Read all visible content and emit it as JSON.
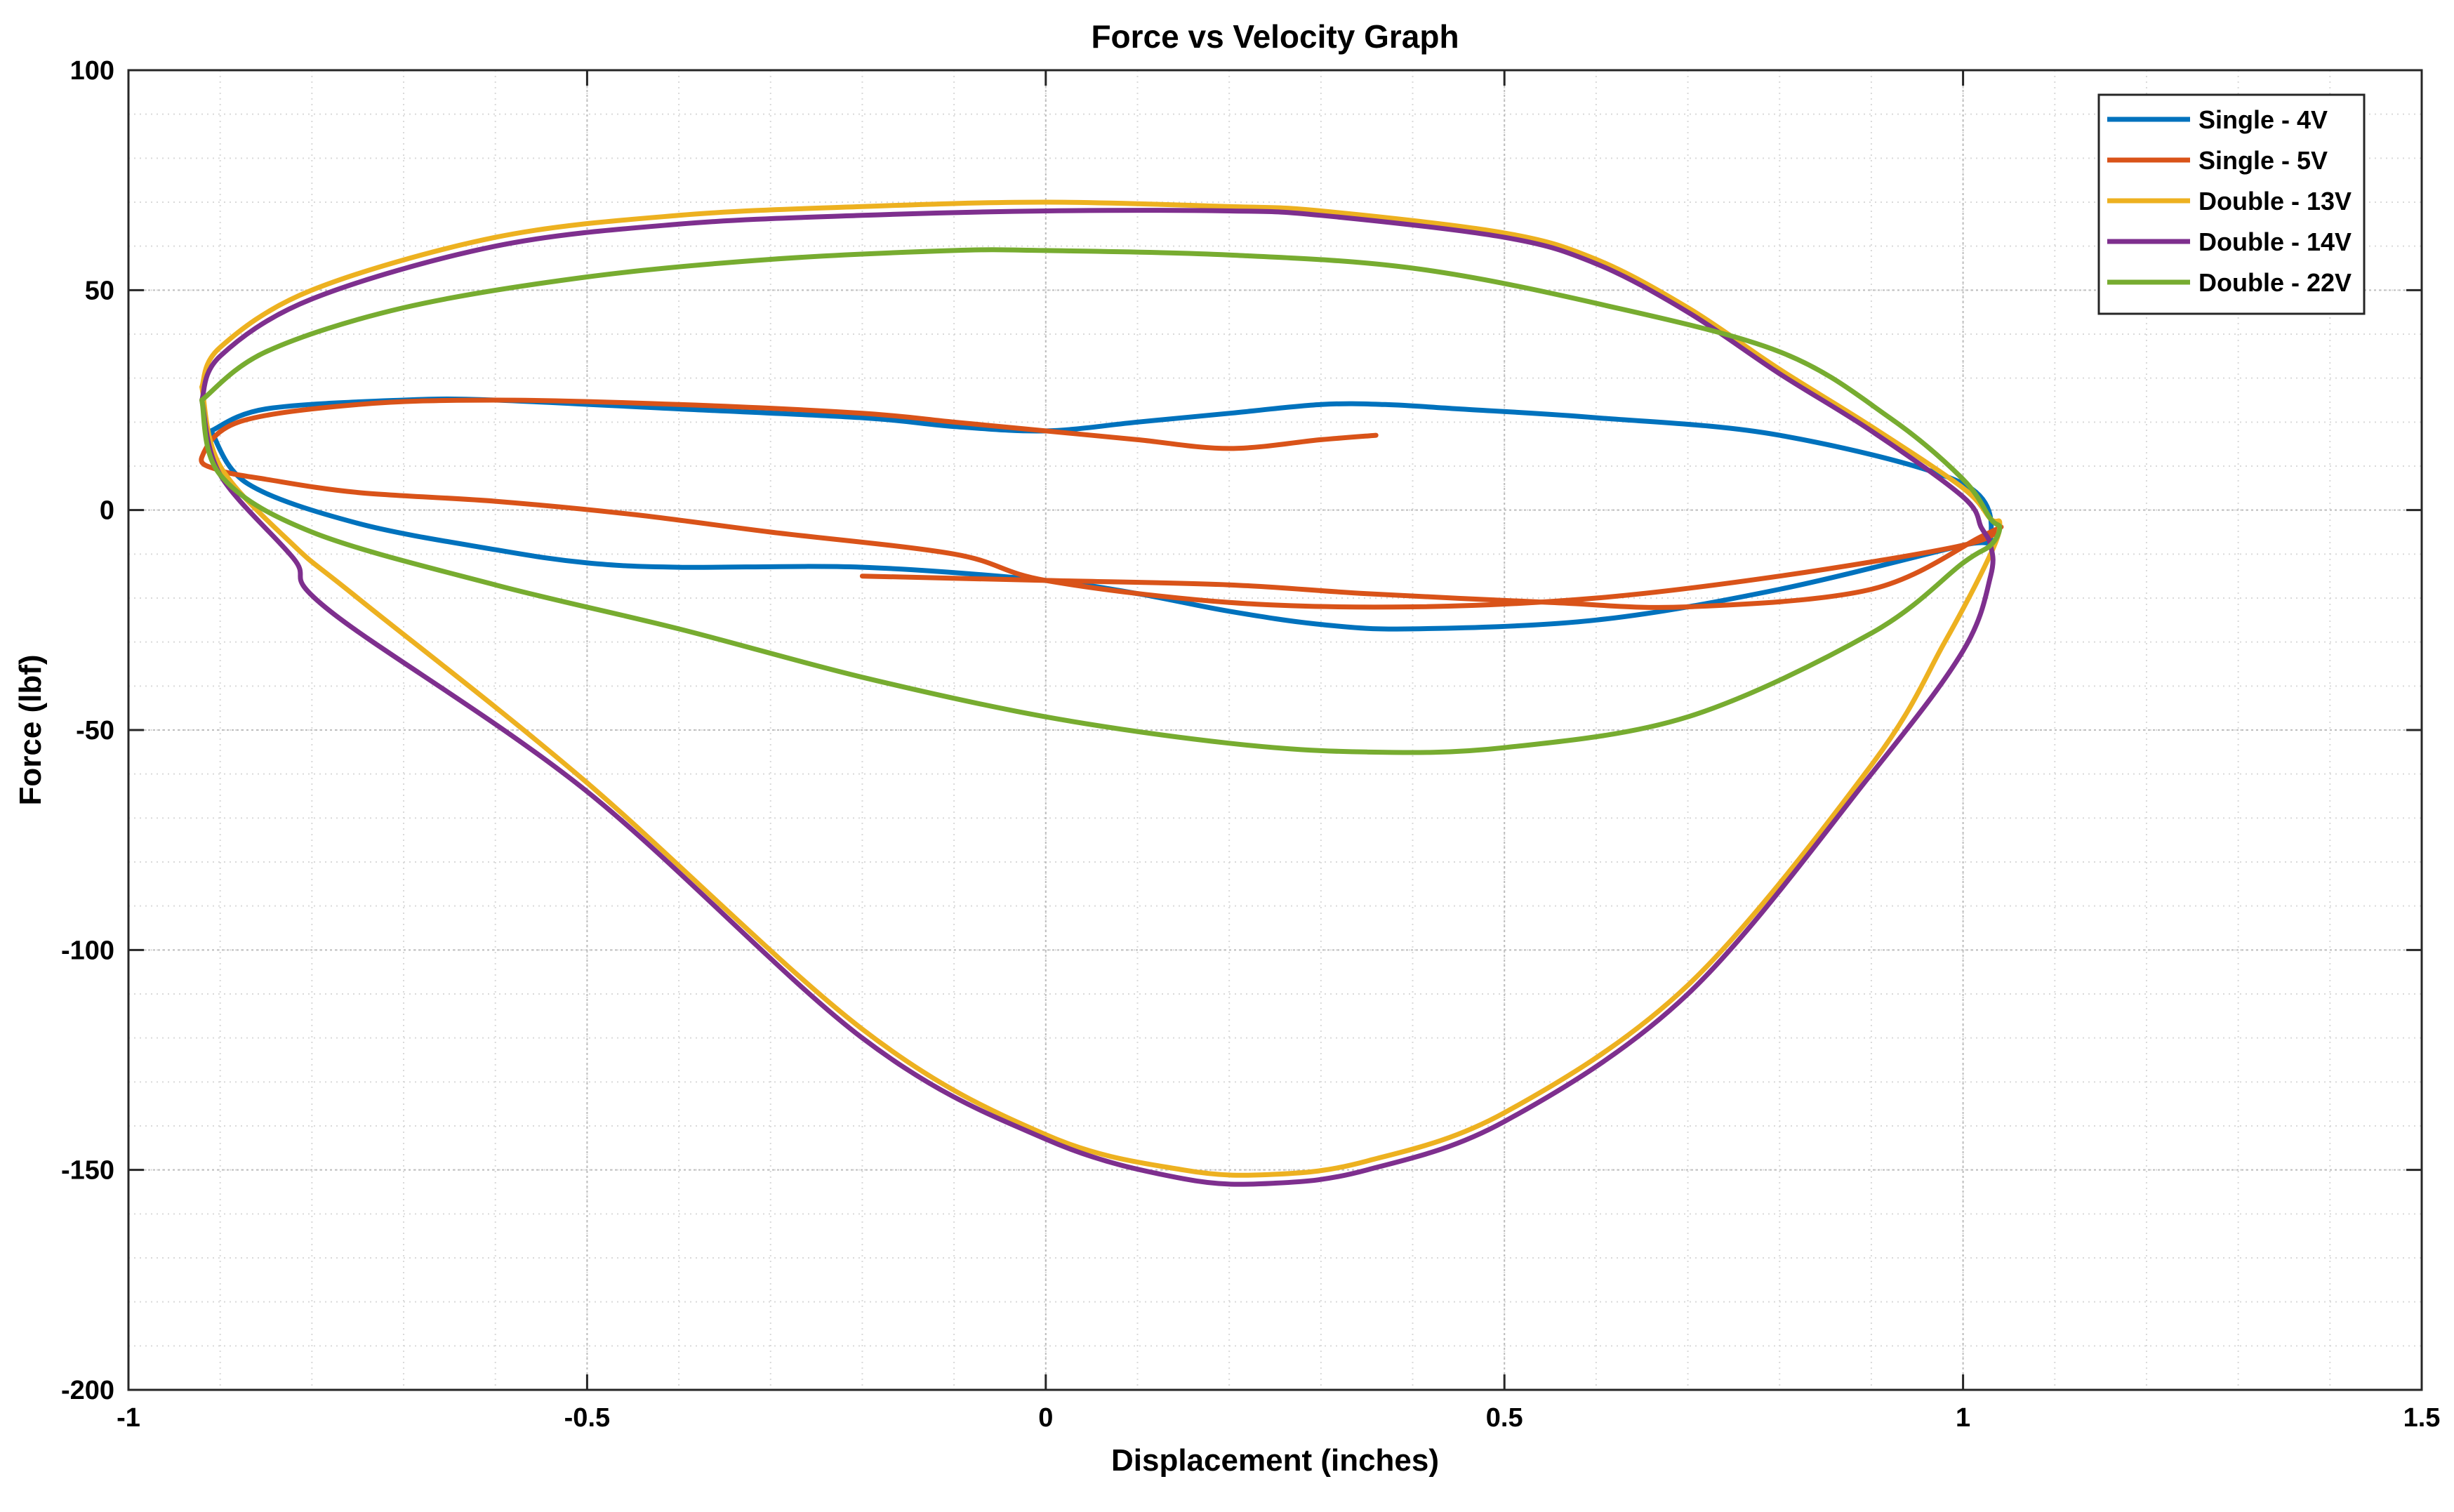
{
  "chart_data": {
    "type": "line",
    "title": "Force vs Velocity Graph",
    "xlabel": "Displacement (inches)",
    "ylabel": "Force (lbf)",
    "xlim": [
      -1,
      1.5
    ],
    "ylim": [
      -200,
      100
    ],
    "xticks": [
      -1,
      -0.5,
      0,
      0.5,
      1,
      1.5
    ],
    "xtick_labels": [
      "-1",
      "-0.5",
      "0",
      "0.5",
      "1",
      "1.5"
    ],
    "yticks": [
      -200,
      -150,
      -100,
      -50,
      0,
      50,
      100
    ],
    "ytick_labels": [
      "-200",
      "-150",
      "-100",
      "-50",
      "0",
      "50",
      "100"
    ],
    "grid": true,
    "minor_grid": true,
    "legend_position": "top-right",
    "series": [
      {
        "name": "Single - 4V",
        "color": "#0072BD",
        "x": [
          -0.91,
          -0.85,
          -0.7,
          -0.6,
          -0.4,
          -0.2,
          -0.1,
          0.0,
          0.1,
          0.2,
          0.3,
          0.37,
          0.45,
          0.6,
          0.8,
          1.0,
          1.03,
          1.0,
          0.8,
          0.6,
          0.4,
          0.3,
          0.2,
          0.1,
          0.0,
          -0.2,
          -0.4,
          -0.5,
          -0.6,
          -0.75,
          -0.87,
          -0.91
        ],
        "y": [
          18,
          23,
          25,
          25,
          23,
          21,
          19,
          18,
          20,
          22,
          24,
          24,
          23,
          21,
          17,
          6,
          -7,
          -8,
          -18,
          -25,
          -27,
          -26,
          -23,
          -19,
          -16,
          -13,
          -13,
          -12,
          -9,
          -3,
          6,
          18
        ]
      },
      {
        "name": "Single - 5V",
        "color": "#D95319",
        "x": [
          0.36,
          0.3,
          0.2,
          0.1,
          0.0,
          -0.1,
          -0.2,
          -0.4,
          -0.6,
          -0.75,
          -0.88,
          -0.92,
          -0.9,
          -0.85,
          -0.75,
          -0.6,
          -0.45,
          -0.3,
          -0.1,
          0.0,
          0.2,
          0.4,
          0.6,
          0.8,
          1.0,
          1.04,
          1.02,
          0.9,
          0.7,
          0.55,
          0.35,
          0.2,
          0.0,
          -0.2
        ],
        "y": [
          17,
          16,
          14,
          16,
          18,
          20,
          22,
          24,
          25,
          24,
          20,
          12,
          9,
          7,
          4,
          2,
          -1,
          -5,
          -10,
          -16,
          -21,
          -22,
          -20,
          -15,
          -8,
          -4,
          -6,
          -18,
          -22,
          -21,
          -19,
          -17,
          -16,
          -15
        ]
      },
      {
        "name": "Double - 13V",
        "color": "#EDB120",
        "x": [
          -0.92,
          -0.9,
          -0.8,
          -0.6,
          -0.4,
          -0.2,
          0.0,
          0.2,
          0.3,
          0.5,
          0.6,
          0.7,
          0.8,
          0.9,
          1.0,
          1.03,
          1.04,
          1.03,
          0.98,
          0.9,
          0.7,
          0.5,
          0.35,
          0.25,
          0.15,
          0.0,
          -0.2,
          -0.5,
          -0.75,
          -0.82,
          -0.9,
          -0.92
        ],
        "y": [
          28,
          37,
          50,
          62,
          67,
          69,
          70,
          69,
          68,
          63,
          57,
          46,
          32,
          19,
          5,
          -2,
          -3,
          -10,
          -30,
          -58,
          -108,
          -137,
          -148,
          -151,
          -150,
          -142,
          -118,
          -62,
          -20,
          -8,
          10,
          28
        ]
      },
      {
        "name": "Double - 14V",
        "color": "#7E2F8E",
        "x": [
          -0.92,
          -0.9,
          -0.8,
          -0.6,
          -0.4,
          -0.2,
          0.0,
          0.2,
          0.3,
          0.5,
          0.6,
          0.7,
          0.8,
          0.9,
          1.0,
          1.02,
          1.03,
          1.03,
          1.0,
          0.9,
          0.7,
          0.5,
          0.35,
          0.25,
          0.15,
          0.0,
          -0.2,
          -0.5,
          -0.78,
          -0.82,
          -0.9,
          -0.92
        ],
        "y": [
          25,
          35,
          48,
          60,
          65,
          67,
          68,
          68,
          67,
          62,
          56,
          45,
          31,
          18,
          3,
          -4,
          -8,
          -15,
          -32,
          -60,
          -110,
          -139,
          -150,
          -153,
          -152,
          -143,
          -120,
          -64,
          -23,
          -11,
          8,
          25
        ]
      },
      {
        "name": "Double - 22V",
        "color": "#77AC30",
        "x": [
          -0.92,
          -0.85,
          -0.7,
          -0.5,
          -0.3,
          -0.1,
          0.0,
          0.2,
          0.4,
          0.6,
          0.8,
          0.92,
          1.0,
          1.03,
          1.04,
          1.03,
          1.0,
          0.9,
          0.7,
          0.5,
          0.35,
          0.2,
          0.0,
          -0.2,
          -0.4,
          -0.6,
          -0.8,
          -0.9,
          -0.92
        ],
        "y": [
          25,
          36,
          46,
          53,
          57,
          59,
          59,
          58,
          55,
          47,
          36,
          21,
          7,
          -2,
          -4,
          -8,
          -12,
          -28,
          -47,
          -54,
          -55,
          -53,
          -47,
          -38,
          -27,
          -17,
          -5,
          8,
          25
        ]
      }
    ]
  }
}
